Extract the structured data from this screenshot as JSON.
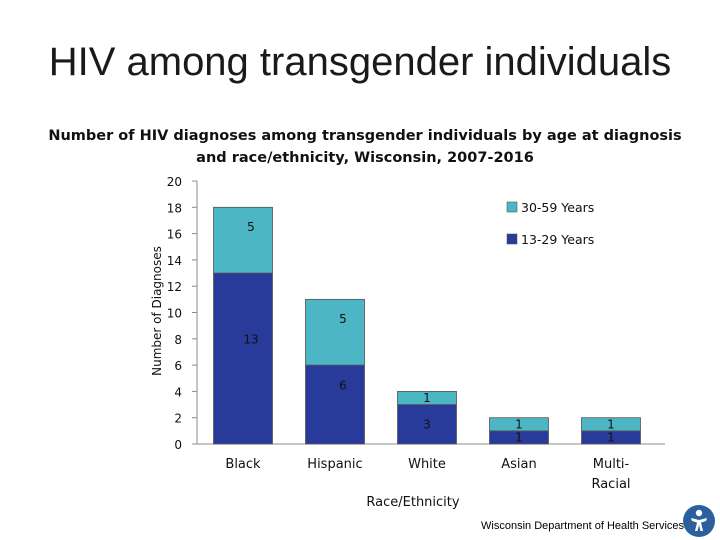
{
  "slide": {
    "title": "HIV among transgender individuals",
    "footer": "Wisconsin Department of Health Services"
  },
  "colors": {
    "series_13_29": "#293b9a",
    "series_30_59": "#4db6c4",
    "logo": "#2c5f9e"
  },
  "chart_data": {
    "type": "bar",
    "stacked": true,
    "title": "Number of HIV diagnoses among transgender individuals by age at diagnosis and race/ethnicity, Wisconsin, 2007-2016",
    "xlabel": "Race/Ethnicity",
    "ylabel": "Number of Diagnoses",
    "ylim": [
      0,
      20
    ],
    "yticks": [
      0,
      2,
      4,
      6,
      8,
      10,
      12,
      14,
      16,
      18,
      20
    ],
    "categories": [
      "Black",
      "Hispanic",
      "White",
      "Asian",
      "Multi-Racial"
    ],
    "category_lines": [
      [
        "Black"
      ],
      [
        "Hispanic"
      ],
      [
        "White"
      ],
      [
        "Asian"
      ],
      [
        "Multi-",
        "Racial"
      ]
    ],
    "series": [
      {
        "name": "13-29 Years",
        "values": [
          13,
          6,
          3,
          1,
          1
        ],
        "color": "#293b9a"
      },
      {
        "name": "30-59 Years",
        "values": [
          5,
          5,
          1,
          1,
          1
        ],
        "color": "#4db6c4"
      }
    ],
    "legend": {
      "position": "top-right",
      "order": [
        "30-59 Years",
        "13-29 Years"
      ]
    },
    "grid": false
  }
}
